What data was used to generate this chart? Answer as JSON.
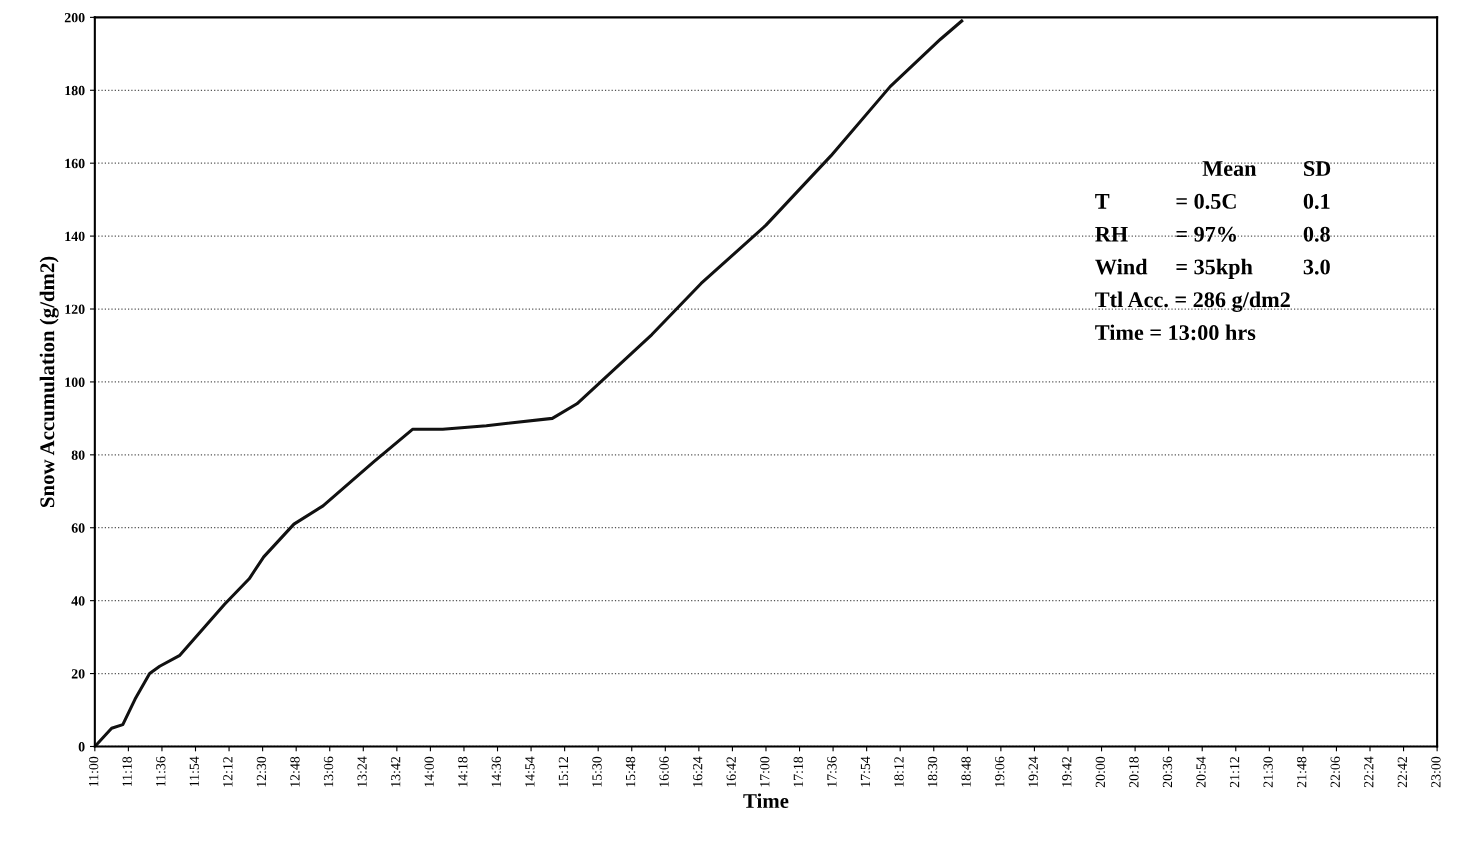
{
  "chart_data": {
    "type": "line",
    "xlabel": "Time",
    "ylabel": "Snow Accumulation (g/dm2)",
    "x": [
      11.0,
      11.15,
      11.25,
      11.36,
      11.49,
      11.58,
      11.76,
      12.16,
      12.38,
      12.51,
      12.78,
      13.04,
      13.49,
      13.84,
      14.11,
      14.5,
      15.09,
      15.31,
      15.98,
      16.42,
      17.0,
      17.58,
      18.11,
      18.56,
      18.75
    ],
    "series": [
      {
        "color": "#111111",
        "values": [
          0,
          5,
          6,
          13,
          20,
          22,
          25,
          39,
          46,
          52,
          61,
          66,
          78,
          87,
          87,
          88,
          90,
          94,
          113,
          127,
          143,
          162,
          181,
          194,
          199
        ]
      }
    ],
    "xlim": [
      11,
      23
    ],
    "ylim": [
      0,
      200
    ],
    "xticks": [
      {
        "value": 11.0,
        "label": "11:00"
      },
      {
        "value": 11.3,
        "label": "11:18"
      },
      {
        "value": 11.6,
        "label": "11:36"
      },
      {
        "value": 11.9,
        "label": "11:54"
      },
      {
        "value": 12.2,
        "label": "12:12"
      },
      {
        "value": 12.5,
        "label": "12:30"
      },
      {
        "value": 12.8,
        "label": "12:48"
      },
      {
        "value": 13.1,
        "label": "13:06"
      },
      {
        "value": 13.4,
        "label": "13:24"
      },
      {
        "value": 13.7,
        "label": "13:42"
      },
      {
        "value": 14.0,
        "label": "14:00"
      },
      {
        "value": 14.3,
        "label": "14:18"
      },
      {
        "value": 14.6,
        "label": "14:36"
      },
      {
        "value": 14.9,
        "label": "14:54"
      },
      {
        "value": 15.2,
        "label": "15:12"
      },
      {
        "value": 15.5,
        "label": "15:30"
      },
      {
        "value": 15.8,
        "label": "15:48"
      },
      {
        "value": 16.1,
        "label": "16:06"
      },
      {
        "value": 16.4,
        "label": "16:24"
      },
      {
        "value": 16.7,
        "label": "16:42"
      },
      {
        "value": 17.0,
        "label": "17:00"
      },
      {
        "value": 17.3,
        "label": "17:18"
      },
      {
        "value": 17.6,
        "label": "17:36"
      },
      {
        "value": 17.9,
        "label": "17:54"
      },
      {
        "value": 18.2,
        "label": "18:12"
      },
      {
        "value": 18.5,
        "label": "18:30"
      },
      {
        "value": 18.8,
        "label": "18:48"
      },
      {
        "value": 19.1,
        "label": "19:06"
      },
      {
        "value": 19.4,
        "label": "19:24"
      },
      {
        "value": 19.7,
        "label": "19:42"
      },
      {
        "value": 20.0,
        "label": "20:00"
      },
      {
        "value": 20.3,
        "label": "20:18"
      },
      {
        "value": 20.6,
        "label": "20:36"
      },
      {
        "value": 20.9,
        "label": "20:54"
      },
      {
        "value": 21.2,
        "label": "21:12"
      },
      {
        "value": 21.5,
        "label": "21:30"
      },
      {
        "value": 21.8,
        "label": "21:48"
      },
      {
        "value": 22.1,
        "label": "22:06"
      },
      {
        "value": 22.4,
        "label": "22:24"
      },
      {
        "value": 22.7,
        "label": "22:42"
      },
      {
        "value": 23.0,
        "label": "23:00"
      }
    ],
    "yticks": [
      0,
      20,
      40,
      60,
      80,
      100,
      120,
      140,
      160,
      180,
      200
    ],
    "grid": "y",
    "legend": false,
    "marker": "none",
    "line_style": "solid",
    "annotations": [
      "Mean",
      "SD",
      "T",
      "= 0.5C",
      "0.1",
      "RH",
      "= 97%",
      "0.8",
      "Wind",
      "= 35kph",
      "3.0",
      "Ttl Acc. = 286 g/dm2",
      "Time = 13:00 hrs"
    ]
  }
}
